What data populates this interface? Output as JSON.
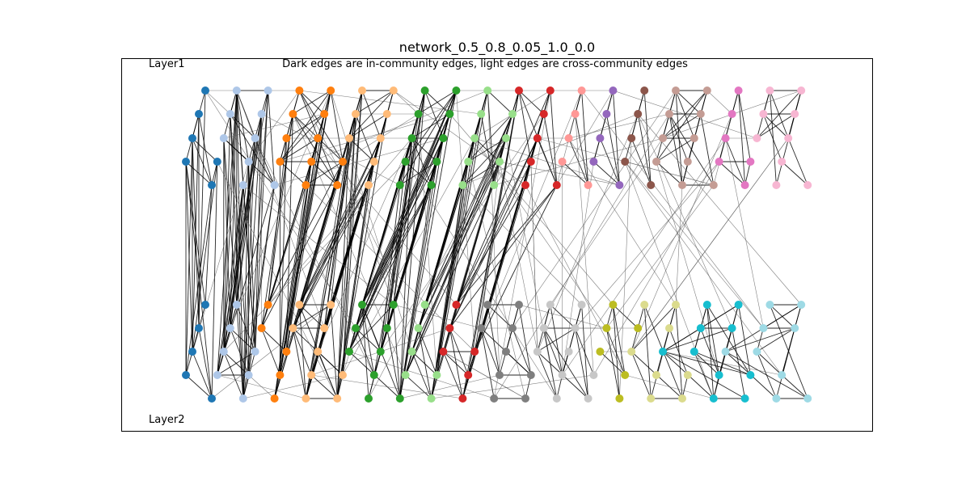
{
  "title": "network_0.5_0.8_0.05_1.0_0.0",
  "subtitle": "Dark edges are in-community edges, light edges are cross-community edges",
  "layer_labels": [
    "Layer1",
    "Layer2"
  ],
  "community_colors": [
    "#1f77b4",
    "#aec7e8",
    "#ff7f0e",
    "#ffbb78",
    "#2ca02c",
    "#98df8a",
    "#d62728",
    "#ff9896",
    "#9467bd",
    "#8c564b",
    "#c49c94",
    "#e377c2",
    "#f7b6d2",
    "#7f7f7f",
    "#c7c7c7",
    "#bcbd22",
    "#dbdb8d",
    "#17becf",
    "#9edae5"
  ],
  "edge_colors": {
    "in_community": "#000000",
    "cross_community": "#555555"
  }
}
